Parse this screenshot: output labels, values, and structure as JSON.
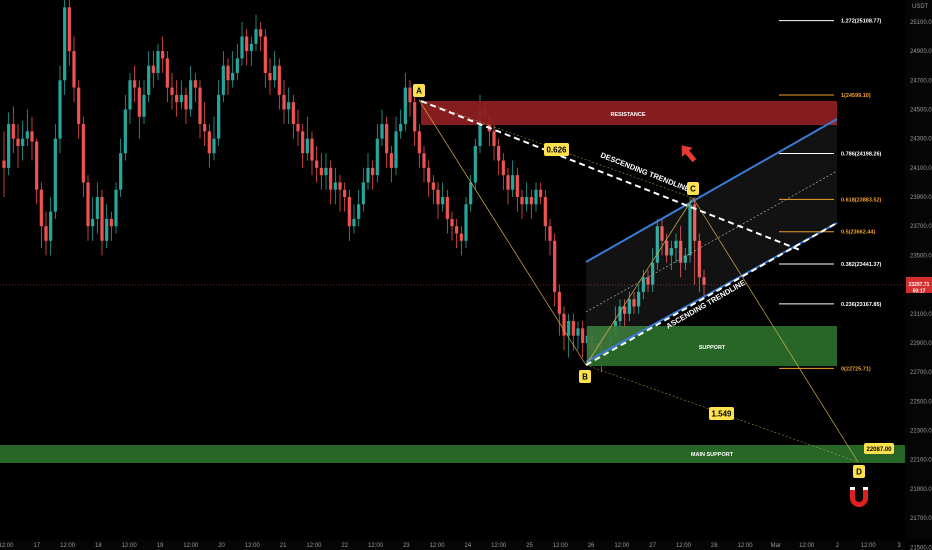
{
  "chart_data": {
    "type": "candlestick",
    "y_unit_label": "USDT",
    "ylim": [
      21550,
      25250
    ],
    "price_ticks": [
      "25100.00",
      "24900.00",
      "24700.00",
      "24500.00",
      "24300.00",
      "24100.00",
      "23900.00",
      "23700.00",
      "23500.00",
      "23300.00",
      "23100.00",
      "22900.00",
      "22700.00",
      "22500.00",
      "22300.00",
      "22100.00",
      "21900.00",
      "21700.00",
      "21500.00"
    ],
    "time_ticks": [
      "12:00",
      "17",
      "12:00",
      "18",
      "12:00",
      "19",
      "12:00",
      "20",
      "12:00",
      "21",
      "12:00",
      "22",
      "12:00",
      "23",
      "12:00",
      "24",
      "12:00",
      "25",
      "12:00",
      "26",
      "12:00",
      "27",
      "12:00",
      "28",
      "12:00",
      "Mar",
      "12:00",
      "2",
      "12:00",
      "3"
    ],
    "current_price": {
      "value": "23297.71",
      "countdown": "50:17"
    },
    "candles": [
      [
        24150,
        24100,
        24350,
        23900
      ],
      [
        24100,
        24400,
        24480,
        24050
      ],
      [
        24400,
        24300,
        24520,
        24200
      ],
      [
        24300,
        24250,
        24400,
        24100
      ],
      [
        24250,
        24300,
        24420,
        24150
      ],
      [
        24300,
        24350,
        24500,
        24250
      ],
      [
        24350,
        24280,
        24450,
        24150
      ],
      [
        24280,
        23950,
        24300,
        23850
      ],
      [
        23950,
        23700,
        24000,
        23550
      ],
      [
        23700,
        23600,
        23800,
        23500
      ],
      [
        23600,
        23800,
        23900,
        23500
      ],
      [
        23800,
        24300,
        24400,
        23750
      ],
      [
        24300,
        24700,
        24800,
        24200
      ],
      [
        24700,
        25200,
        25300,
        24600
      ],
      [
        25200,
        24900,
        25250,
        24800
      ],
      [
        24900,
        24650,
        25000,
        24550
      ],
      [
        24650,
        24400,
        24700,
        24300
      ],
      [
        24400,
        24000,
        24450,
        23900
      ],
      [
        24000,
        23700,
        24050,
        23600
      ],
      [
        23700,
        23750,
        23900,
        23600
      ],
      [
        23750,
        23900,
        24000,
        23650
      ],
      [
        23900,
        23600,
        23950,
        23500
      ],
      [
        23600,
        23750,
        23850,
        23550
      ],
      [
        23750,
        23700,
        23800,
        23600
      ],
      [
        23700,
        23950,
        24000,
        23650
      ],
      [
        23950,
        24200,
        24300,
        23900
      ],
      [
        24200,
        24500,
        24600,
        24150
      ],
      [
        24500,
        24700,
        24750,
        24400
      ],
      [
        24700,
        24650,
        24800,
        24550
      ],
      [
        24650,
        24450,
        24700,
        24300
      ],
      [
        24450,
        24600,
        24700,
        24400
      ],
      [
        24600,
        24800,
        24900,
        24550
      ],
      [
        24800,
        24750,
        24900,
        24650
      ],
      [
        24750,
        24900,
        24950,
        24700
      ],
      [
        24900,
        24850,
        25000,
        24750
      ],
      [
        24850,
        24650,
        24900,
        24550
      ],
      [
        24650,
        24600,
        24750,
        24500
      ],
      [
        24600,
        24550,
        24700,
        24450
      ],
      [
        24550,
        24600,
        24700,
        24500
      ],
      [
        24600,
        24500,
        24650,
        24400
      ],
      [
        24500,
        24700,
        24800,
        24450
      ],
      [
        24700,
        24650,
        24750,
        24550
      ],
      [
        24650,
        24400,
        24700,
        24300
      ],
      [
        24400,
        24350,
        24550,
        24250
      ],
      [
        24350,
        24200,
        24400,
        24100
      ],
      [
        24200,
        24300,
        24450,
        24150
      ],
      [
        24300,
        24600,
        24700,
        24250
      ],
      [
        24600,
        24800,
        24900,
        24550
      ],
      [
        24800,
        24700,
        24850,
        24600
      ],
      [
        24700,
        24750,
        24900,
        24650
      ],
      [
        24750,
        24850,
        24950,
        24700
      ],
      [
        24850,
        25000,
        25100,
        24800
      ],
      [
        25000,
        24900,
        25050,
        24800
      ],
      [
        24900,
        24950,
        25000,
        24800
      ],
      [
        24950,
        25050,
        25150,
        24900
      ],
      [
        25050,
        25000,
        25100,
        24900
      ],
      [
        25000,
        24750,
        25050,
        24650
      ],
      [
        24750,
        24700,
        24850,
        24600
      ],
      [
        24700,
        24800,
        24900,
        24650
      ],
      [
        24800,
        24600,
        24850,
        24500
      ],
      [
        24600,
        24500,
        24700,
        24400
      ],
      [
        24500,
        24550,
        24650,
        24400
      ],
      [
        24550,
        24400,
        24600,
        24300
      ],
      [
        24400,
        24350,
        24500,
        24250
      ],
      [
        24350,
        24200,
        24400,
        24100
      ],
      [
        24200,
        24300,
        24450,
        24150
      ],
      [
        24300,
        24150,
        24350,
        24050
      ],
      [
        24150,
        24100,
        24250,
        24000
      ],
      [
        24100,
        24050,
        24200,
        23950
      ],
      [
        24050,
        24100,
        24200,
        23950
      ],
      [
        24100,
        23950,
        24150,
        23850
      ],
      [
        23950,
        24000,
        24100,
        23850
      ],
      [
        24000,
        23950,
        24050,
        23800
      ],
      [
        23950,
        23900,
        24000,
        23800
      ],
      [
        23900,
        23700,
        23950,
        23600
      ],
      [
        23700,
        23750,
        23850,
        23650
      ],
      [
        23750,
        23850,
        23950,
        23700
      ],
      [
        23850,
        24000,
        24100,
        23800
      ],
      [
        24000,
        24100,
        24200,
        23950
      ],
      [
        24100,
        24050,
        24150,
        23950
      ],
      [
        24050,
        24300,
        24400,
        24000
      ],
      [
        24300,
        24400,
        24500,
        24250
      ],
      [
        24400,
        24200,
        24450,
        24100
      ],
      [
        24200,
        24100,
        24250,
        24000
      ],
      [
        24100,
        24350,
        24450,
        24050
      ],
      [
        24350,
        24400,
        24500,
        24300
      ],
      [
        24400,
        24650,
        24750,
        24350
      ],
      [
        24650,
        24550,
        24700,
        24450
      ],
      [
        24550,
        24350,
        24600,
        24250
      ],
      [
        24350,
        24200,
        24400,
        24100
      ],
      [
        24200,
        24100,
        24250,
        24000
      ],
      [
        24100,
        24000,
        24150,
        23900
      ],
      [
        24000,
        23950,
        24050,
        23850
      ],
      [
        23950,
        23850,
        24000,
        23750
      ],
      [
        23850,
        23900,
        24000,
        23800
      ],
      [
        23900,
        23750,
        23950,
        23650
      ],
      [
        23750,
        23700,
        23800,
        23600
      ],
      [
        23700,
        23650,
        23750,
        23550
      ],
      [
        23650,
        23600,
        23700,
        23500
      ],
      [
        23600,
        23850,
        23900,
        23550
      ],
      [
        23850,
        24000,
        24050,
        23800
      ],
      [
        24000,
        24250,
        24300,
        23950
      ],
      [
        24250,
        24500,
        24600,
        24200
      ],
      [
        24500,
        24450,
        24550,
        24400
      ],
      [
        24450,
        24350,
        24500,
        24250
      ],
      [
        24350,
        24250,
        24400,
        24150
      ],
      [
        24250,
        24150,
        24300,
        24050
      ],
      [
        24150,
        24050,
        24200,
        23950
      ],
      [
        24050,
        23950,
        24100,
        23850
      ],
      [
        23950,
        24050,
        24150,
        23900
      ],
      [
        24050,
        23900,
        24100,
        23800
      ],
      [
        23900,
        23850,
        23950,
        23750
      ],
      [
        23850,
        23900,
        24000,
        23800
      ],
      [
        23900,
        23850,
        23950,
        23750
      ],
      [
        23850,
        23950,
        24000,
        23800
      ],
      [
        23950,
        23900,
        24000,
        23850
      ],
      [
        23900,
        23700,
        23950,
        23600
      ],
      [
        23700,
        23600,
        23750,
        23500
      ],
      [
        23600,
        23250,
        23650,
        23150
      ],
      [
        23250,
        23100,
        23300,
        22950
      ],
      [
        23100,
        22950,
        23150,
        22850
      ],
      [
        22950,
        23050,
        23100,
        22800
      ],
      [
        23050,
        22950,
        23100,
        22850
      ],
      [
        22950,
        23000,
        23050,
        22850
      ],
      [
        23000,
        22900,
        23050,
        22800
      ],
      [
        22900,
        22950,
        23000,
        22850
      ],
      [
        22950,
        22850,
        23000,
        22750
      ],
      [
        22850,
        22900,
        22950,
        22800
      ],
      [
        22900,
        22800,
        22950,
        22700
      ],
      [
        22800,
        22850,
        22900,
        22750
      ],
      [
        22850,
        22950,
        23000,
        22800
      ],
      [
        22950,
        23050,
        23150,
        22900
      ],
      [
        23050,
        23150,
        23200,
        23000
      ],
      [
        23150,
        23100,
        23200,
        23000
      ],
      [
        23100,
        23200,
        23250,
        23050
      ],
      [
        23200,
        23150,
        23250,
        23100
      ],
      [
        23150,
        23250,
        23300,
        23100
      ],
      [
        23250,
        23350,
        23400,
        23200
      ],
      [
        23350,
        23300,
        23400,
        23250
      ],
      [
        23300,
        23450,
        23550,
        23250
      ],
      [
        23450,
        23700,
        23750,
        23400
      ],
      [
        23700,
        23600,
        23750,
        23500
      ],
      [
        23600,
        23500,
        23650,
        23450
      ],
      [
        23500,
        23550,
        23600,
        23400
      ],
      [
        23550,
        23600,
        23650,
        23450
      ],
      [
        23600,
        23450,
        23700,
        23350
      ],
      [
        23450,
        23500,
        23550,
        23400
      ],
      [
        23500,
        23850,
        23900,
        23450
      ],
      [
        23850,
        23600,
        23900,
        23300
      ],
      [
        23600,
        23350,
        23650,
        23250
      ],
      [
        23350,
        23300,
        23400,
        23200
      ]
    ]
  },
  "drawings": {
    "labels": {
      "resistance": "RESISTANCE",
      "support": "SUPPORT",
      "main_support": "MAIN SUPPORT",
      "descending_trendline": "DESCENDING TRENDLINE",
      "ascending_trendline": "ASCENDING TRENDLINE"
    },
    "points": {
      "a": "A",
      "b": "B",
      "c": "C",
      "d": "D"
    },
    "ratios": {
      "ac": "0.626",
      "bd": "1.549"
    },
    "d_price": "22087.00",
    "fib_levels": [
      "1.272(25108.77)",
      "1(24599.10)",
      "0.786(24198.26)",
      "0.618(23883.52)",
      "0.5(23662.44)",
      "0.382(23441.37)",
      "0.236(23167.85)",
      "0(22725.71)"
    ],
    "colors": {
      "resistance_zone": "#8b1d22",
      "support_zone": "#2a6b2a",
      "channel_line": "#3a7bd5",
      "point_tag": "#ffe14d",
      "up_candle": "#26a69a",
      "down_candle": "#ef5350",
      "fib_orange": "#f0a030",
      "magnet": "#e02020"
    },
    "icons": [
      "arrow-up-right-icon",
      "magnet-icon"
    ]
  }
}
